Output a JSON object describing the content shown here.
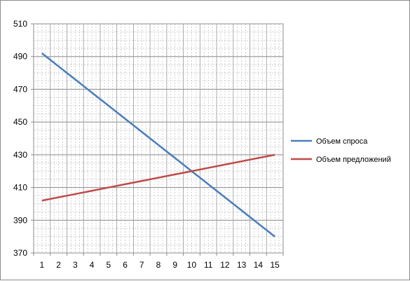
{
  "chart_data": {
    "type": "line",
    "x": [
      1,
      2,
      3,
      4,
      5,
      6,
      7,
      8,
      9,
      10,
      11,
      12,
      13,
      14,
      15
    ],
    "series": [
      {
        "name": "Объем спроса",
        "color": "#4a7ebb",
        "values": [
          492,
          484,
          476,
          468,
          460,
          452,
          444,
          436,
          428,
          420,
          412,
          404,
          396,
          388,
          380
        ]
      },
      {
        "name": "Объем предложений",
        "color": "#be4b48",
        "values": [
          402,
          404,
          406,
          408,
          410,
          412,
          414,
          416,
          418,
          420,
          422,
          424,
          426,
          428,
          430
        ]
      }
    ],
    "title": "",
    "xlabel": "",
    "ylabel": "",
    "ylim": [
      370,
      510
    ],
    "yticks": [
      370,
      390,
      410,
      430,
      450,
      470,
      490,
      510
    ],
    "xticks": [
      1,
      2,
      3,
      4,
      5,
      6,
      7,
      8,
      9,
      10,
      11,
      12,
      13,
      14,
      15
    ],
    "grid": "on",
    "legend": "right"
  }
}
